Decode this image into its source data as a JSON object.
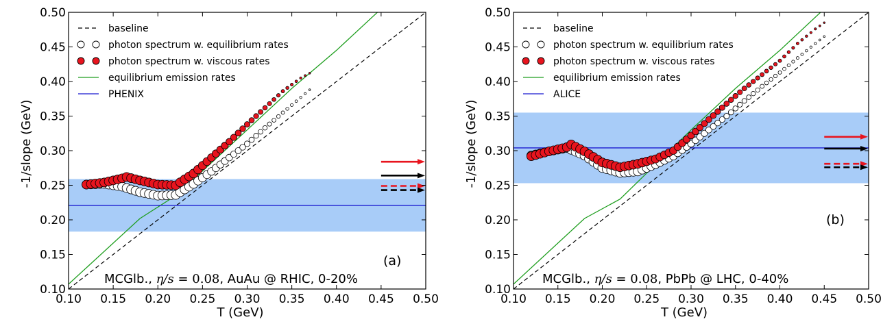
{
  "chart_data": [
    {
      "type": "line",
      "xlabel": "T (GeV)",
      "ylabel": "-1/slope (GeV)",
      "xlim": [
        0.1,
        0.5
      ],
      "ylim": [
        0.1,
        0.5
      ],
      "xticks": [
        "0.10",
        "0.15",
        "0.20",
        "0.25",
        "0.30",
        "0.35",
        "0.40",
        "0.45",
        "0.50"
      ],
      "yticks": [
        "0.10",
        "0.15",
        "0.20",
        "0.25",
        "0.30",
        "0.35",
        "0.40",
        "0.45",
        "0.50"
      ],
      "legend_position": "top-left",
      "annotation": "MCGlb., η/s = 0.08, AuAu @ RHIC, 0-20%",
      "annotation_parts": [
        "MCGlb., ",
        "η/s",
        " = ",
        "0.08",
        ", AuAu @ RHIC, 0-20%"
      ],
      "panel_label": "(a)",
      "band": {
        "center": 0.221,
        "low": 0.183,
        "high": 0.259,
        "color": "#a8ccf8"
      },
      "series": [
        {
          "name": "baseline",
          "style": "dashed",
          "color": "#000000",
          "x": [
            0.1,
            0.5
          ],
          "y": [
            0.1,
            0.5
          ]
        },
        {
          "name": "photon spectrum w. equilibrium rates",
          "style": "open-circles",
          "color": "#000000",
          "x": [
            0.12,
            0.14,
            0.16,
            0.18,
            0.2,
            0.22,
            0.24,
            0.26,
            0.28,
            0.3,
            0.32,
            0.34,
            0.36,
            0.37
          ],
          "y": [
            0.251,
            0.252,
            0.248,
            0.24,
            0.235,
            0.236,
            0.252,
            0.27,
            0.29,
            0.31,
            0.333,
            0.355,
            0.377,
            0.388
          ]
        },
        {
          "name": "photon spectrum w. viscous rates",
          "style": "filled-circles",
          "color": "#e8141e",
          "x": [
            0.12,
            0.14,
            0.16,
            0.165,
            0.18,
            0.2,
            0.22,
            0.24,
            0.26,
            0.28,
            0.3,
            0.32,
            0.34,
            0.36,
            0.37
          ],
          "y": [
            0.251,
            0.254,
            0.26,
            0.262,
            0.257,
            0.251,
            0.25,
            0.267,
            0.29,
            0.313,
            0.338,
            0.362,
            0.386,
            0.405,
            0.412
          ]
        },
        {
          "name": "equilibrium emission rates",
          "style": "solid",
          "color": "#1e9e1e",
          "x": [
            0.1,
            0.18,
            0.22,
            0.3,
            0.35,
            0.4,
            0.45
          ],
          "y": [
            0.107,
            0.202,
            0.235,
            0.33,
            0.39,
            0.445,
            0.505
          ]
        },
        {
          "name": "PHENIX",
          "style": "solid",
          "color": "#1a1ad0",
          "x": [
            0.1,
            0.5
          ],
          "y": [
            0.221,
            0.221
          ]
        }
      ],
      "arrows": [
        {
          "y": 0.284,
          "color": "#e8141e",
          "style": "solid"
        },
        {
          "y": 0.264,
          "color": "#000000",
          "style": "solid"
        },
        {
          "y": 0.249,
          "color": "#e8141e",
          "style": "dashed"
        },
        {
          "y": 0.243,
          "color": "#000000",
          "style": "dashed"
        }
      ]
    },
    {
      "type": "line",
      "xlabel": "T (GeV)",
      "ylabel": "-1/slope (GeV)",
      "xlim": [
        0.1,
        0.5
      ],
      "ylim": [
        0.1,
        0.5
      ],
      "xticks": [
        "0.10",
        "0.15",
        "0.20",
        "0.25",
        "0.30",
        "0.35",
        "0.40",
        "0.45",
        "0.50"
      ],
      "yticks": [
        "0.10",
        "0.15",
        "0.20",
        "0.25",
        "0.30",
        "0.35",
        "0.40",
        "0.45",
        "0.50"
      ],
      "legend_position": "top-left",
      "annotation": "MCGlb., η/s = 0.08, PbPb @ LHC, 0-40%",
      "annotation_parts": [
        "MCGlb., ",
        "η/s",
        " = ",
        "0.08",
        ", PbPb @ LHC, 0-40%"
      ],
      "panel_label": "(b)",
      "band": {
        "center": 0.304,
        "low": 0.253,
        "high": 0.355,
        "color": "#a8ccf8"
      },
      "series": [
        {
          "name": "baseline",
          "style": "dashed",
          "color": "#000000",
          "x": [
            0.1,
            0.5
          ],
          "y": [
            0.1,
            0.5
          ]
        },
        {
          "name": "photon spectrum w. equilibrium rates",
          "style": "open-circles",
          "color": "#000000",
          "x": [
            0.12,
            0.14,
            0.16,
            0.18,
            0.2,
            0.22,
            0.24,
            0.26,
            0.28,
            0.3,
            0.32,
            0.34,
            0.36,
            0.38,
            0.4,
            0.42,
            0.44,
            0.45
          ],
          "y": [
            0.293,
            0.299,
            0.304,
            0.293,
            0.275,
            0.268,
            0.27,
            0.28,
            0.292,
            0.31,
            0.33,
            0.35,
            0.372,
            0.393,
            0.413,
            0.434,
            0.455,
            0.465
          ]
        },
        {
          "name": "photon spectrum w. viscous rates",
          "style": "filled-circles",
          "color": "#e8141e",
          "x": [
            0.12,
            0.14,
            0.16,
            0.165,
            0.18,
            0.2,
            0.22,
            0.24,
            0.26,
            0.28,
            0.3,
            0.32,
            0.34,
            0.36,
            0.38,
            0.4,
            0.42,
            0.44,
            0.45
          ],
          "y": [
            0.292,
            0.299,
            0.305,
            0.309,
            0.299,
            0.283,
            0.276,
            0.281,
            0.288,
            0.3,
            0.322,
            0.345,
            0.368,
            0.39,
            0.41,
            0.43,
            0.455,
            0.476,
            0.485
          ]
        },
        {
          "name": "equilibrium emission rates",
          "style": "solid",
          "color": "#1e9e1e",
          "x": [
            0.1,
            0.18,
            0.22,
            0.3,
            0.35,
            0.4,
            0.45
          ],
          "y": [
            0.107,
            0.202,
            0.23,
            0.33,
            0.39,
            0.445,
            0.505
          ]
        },
        {
          "name": "ALICE",
          "style": "solid",
          "color": "#1a1ad0",
          "x": [
            0.1,
            0.5
          ],
          "y": [
            0.304,
            0.304
          ]
        }
      ],
      "arrows": [
        {
          "y": 0.32,
          "color": "#e8141e",
          "style": "solid"
        },
        {
          "y": 0.303,
          "color": "#000000",
          "style": "solid"
        },
        {
          "y": 0.281,
          "color": "#e8141e",
          "style": "dashed"
        },
        {
          "y": 0.276,
          "color": "#000000",
          "style": "dashed"
        }
      ]
    }
  ]
}
